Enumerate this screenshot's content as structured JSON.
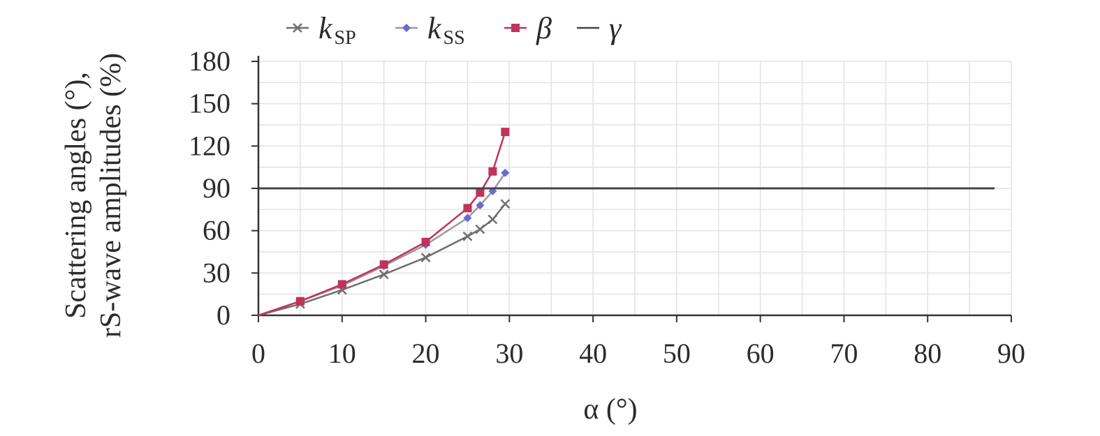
{
  "chart_data": {
    "type": "line",
    "xlabel": "α (°)",
    "ylabel_lines": [
      "Scattering angles (°),",
      "rS-wave amplitudes (%)"
    ],
    "xlim": [
      0,
      90
    ],
    "ylim": [
      0,
      180
    ],
    "x_ticks": [
      "0",
      "10",
      "20",
      "30",
      "40",
      "50",
      "60",
      "70",
      "80",
      "90"
    ],
    "y_ticks": [
      "0",
      "30",
      "60",
      "90",
      "120",
      "150",
      "180"
    ],
    "grid": true,
    "legend_position": "top-left",
    "series": [
      {
        "name": "k_SP",
        "legend_main": "k",
        "legend_sub": "SP",
        "color": "#6e6e6e",
        "marker": "cross",
        "x": [
          0,
          5,
          10,
          15,
          20,
          25,
          26.5,
          28,
          29.5
        ],
        "y": [
          0,
          8,
          18,
          29,
          41,
          56,
          61,
          68,
          79
        ]
      },
      {
        "name": "k_SS",
        "legend_main": "k",
        "legend_sub": "SS",
        "color": "#9a9a9a",
        "marker": "diamond",
        "marker_color": "#6a6ad0",
        "x": [
          0,
          5,
          10,
          15,
          20,
          25,
          26.5,
          28,
          29.5
        ],
        "y": [
          0,
          10,
          21,
          35,
          50,
          69,
          78,
          88,
          101
        ]
      },
      {
        "name": "β",
        "legend_main": "β",
        "legend_sub": "",
        "color": "#c0335a",
        "marker": "square",
        "x": [
          0,
          5,
          10,
          15,
          20,
          25,
          26.5,
          28,
          29.5
        ],
        "y": [
          0,
          10,
          22,
          36,
          52,
          76,
          87,
          102,
          130
        ]
      },
      {
        "name": "γ",
        "legend_main": "γ",
        "legend_sub": "",
        "color": "#444444",
        "marker": "none",
        "x": [
          0,
          88
        ],
        "y": [
          90,
          90
        ]
      }
    ]
  }
}
